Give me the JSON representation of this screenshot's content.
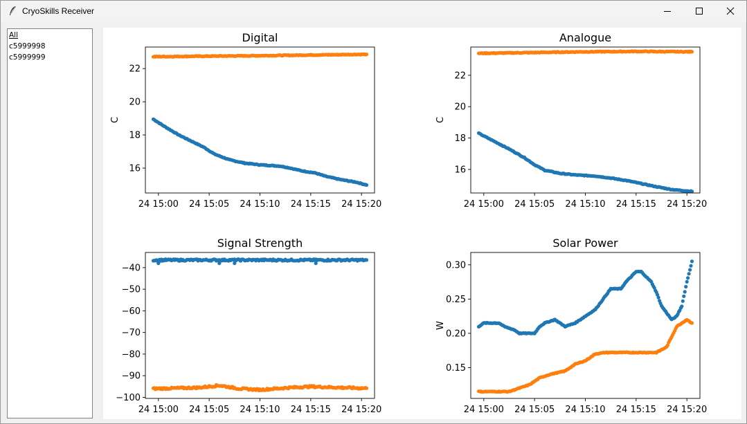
{
  "window": {
    "title": "CryoSkills Receiver"
  },
  "window_controls": {
    "minimize": "–",
    "maximize": "□",
    "close": "×"
  },
  "sidebar": {
    "items": [
      {
        "label": "All",
        "selected": true
      },
      {
        "label": "c5999998"
      },
      {
        "label": "c5999999"
      }
    ]
  },
  "colors": {
    "series1": "#1f77b4",
    "series2": "#ff7f0e"
  },
  "chart_data": [
    {
      "type": "scatter",
      "title": "Digital",
      "xlabel": "",
      "ylabel": "C",
      "xlim": [
        "2024-xx-24 14:58:43",
        "2024-xx-24 15:21:17"
      ],
      "ylim": [
        14.5,
        23.3
      ],
      "xticks": [
        "24 15:00",
        "24 15:05",
        "24 15:10",
        "24 15:15",
        "24 15:20"
      ],
      "yticks": [
        16,
        18,
        20,
        22
      ],
      "series": [
        {
          "color": "#1f77b4",
          "points": [
            [
              "14:59:30",
              18.95
            ],
            [
              "15:00:30",
              18.55
            ],
            [
              "15:02:00",
              18.0
            ],
            [
              "15:03:30",
              17.55
            ],
            [
              "15:04:30",
              17.25
            ],
            [
              "15:05:30",
              16.85
            ],
            [
              "15:07:00",
              16.5
            ],
            [
              "15:08:30",
              16.3
            ],
            [
              "15:10:00",
              16.2
            ],
            [
              "15:12:00",
              16.12
            ],
            [
              "15:13:00",
              16.0
            ],
            [
              "15:14:00",
              15.85
            ],
            [
              "15:15:30",
              15.7
            ],
            [
              "15:16:30",
              15.5
            ],
            [
              "15:18:00",
              15.3
            ],
            [
              "15:19:30",
              15.15
            ],
            [
              "15:20:30",
              14.98
            ]
          ]
        },
        {
          "color": "#ff7f0e",
          "points": [
            [
              "14:59:30",
              22.72
            ],
            [
              "15:05:00",
              22.75
            ],
            [
              "15:10:00",
              22.78
            ],
            [
              "15:15:00",
              22.82
            ],
            [
              "15:20:30",
              22.86
            ]
          ]
        }
      ]
    },
    {
      "type": "scatter",
      "title": "Analogue",
      "xlabel": "",
      "ylabel": "C",
      "xlim": [
        "2024-xx-24 14:58:43",
        "2024-xx-24 15:21:17"
      ],
      "ylim": [
        14.5,
        23.8
      ],
      "xticks": [
        "24 15:00",
        "24 15:05",
        "24 15:10",
        "24 15:15",
        "24 15:20"
      ],
      "yticks": [
        16,
        18,
        20,
        22
      ],
      "series": [
        {
          "color": "#1f77b4",
          "points": [
            [
              "14:59:30",
              18.3
            ],
            [
              "15:01:00",
              17.8
            ],
            [
              "15:02:30",
              17.3
            ],
            [
              "15:04:00",
              16.75
            ],
            [
              "15:05:00",
              16.3
            ],
            [
              "15:06:00",
              15.95
            ],
            [
              "15:07:30",
              15.75
            ],
            [
              "15:09:00",
              15.65
            ],
            [
              "15:11:00",
              15.58
            ],
            [
              "15:12:30",
              15.45
            ],
            [
              "15:14:00",
              15.3
            ],
            [
              "15:15:30",
              15.1
            ],
            [
              "15:17:00",
              14.9
            ],
            [
              "15:18:30",
              14.72
            ],
            [
              "15:20:30",
              14.6
            ]
          ]
        },
        {
          "color": "#ff7f0e",
          "points": [
            [
              "14:59:30",
              23.4
            ],
            [
              "15:05:00",
              23.45
            ],
            [
              "15:10:00",
              23.5
            ],
            [
              "15:15:00",
              23.52
            ],
            [
              "15:20:30",
              23.5
            ]
          ]
        }
      ]
    },
    {
      "type": "scatter",
      "title": "Signal Strength",
      "xlabel": "",
      "ylabel": "",
      "xlim": [
        "2024-xx-24 14:58:43",
        "2024-xx-24 15:21:17"
      ],
      "ylim": [
        -100.5,
        -33
      ],
      "xticks": [
        "24 15:00",
        "24 15:05",
        "24 15:10",
        "24 15:15",
        "24 15:20"
      ],
      "yticks": [
        -100,
        -90,
        -80,
        -70,
        -60,
        -50,
        -40
      ],
      "series": [
        {
          "color": "#1f77b4",
          "points": [
            [
              "14:59:30",
              -36.5
            ],
            [
              "15:20:30",
              -36.5
            ]
          ],
          "outliers": [
            [
              "15:00:00",
              -38
            ],
            [
              "15:06:00",
              -38
            ],
            [
              "15:07:30",
              -38
            ],
            [
              "15:15:30",
              -38
            ]
          ]
        },
        {
          "color": "#ff7f0e",
          "points": [
            [
              "14:59:30",
              -96
            ],
            [
              "15:04:00",
              -95.5
            ],
            [
              "15:06:00",
              -94.5
            ],
            [
              "15:08:00",
              -96
            ],
            [
              "15:10:00",
              -96.5
            ],
            [
              "15:13:00",
              -95.5
            ],
            [
              "15:15:00",
              -95
            ],
            [
              "15:18:00",
              -95.5
            ],
            [
              "15:20:30",
              -95.8
            ]
          ]
        }
      ]
    },
    {
      "type": "scatter",
      "title": "Solar Power",
      "xlabel": "",
      "ylabel": "W",
      "xlim": [
        "2024-xx-24 14:58:43",
        "2024-xx-24 15:21:17"
      ],
      "ylim": [
        0.105,
        0.318
      ],
      "xticks": [
        "24 15:00",
        "24 15:05",
        "24 15:10",
        "24 15:15",
        "24 15:20"
      ],
      "yticks": [
        0.15,
        0.2,
        0.25,
        0.3
      ],
      "series": [
        {
          "color": "#1f77b4",
          "points": [
            [
              "14:59:30",
              0.21
            ],
            [
              "15:00:00",
              0.215
            ],
            [
              "15:01:30",
              0.215
            ],
            [
              "15:02:00",
              0.21
            ],
            [
              "15:03:00",
              0.205
            ],
            [
              "15:03:30",
              0.2
            ],
            [
              "15:05:00",
              0.2
            ],
            [
              "15:05:30",
              0.21
            ],
            [
              "15:06:00",
              0.215
            ],
            [
              "15:07:00",
              0.22
            ],
            [
              "15:07:30",
              0.215
            ],
            [
              "15:08:00",
              0.21
            ],
            [
              "15:09:00",
              0.215
            ],
            [
              "15:10:00",
              0.225
            ],
            [
              "15:11:00",
              0.235
            ],
            [
              "15:12:00",
              0.255
            ],
            [
              "15:12:30",
              0.265
            ],
            [
              "15:13:30",
              0.265
            ],
            [
              "15:14:00",
              0.275
            ],
            [
              "15:15:00",
              0.29
            ],
            [
              "15:15:30",
              0.29
            ],
            [
              "15:16:30",
              0.275
            ],
            [
              "15:17:00",
              0.26
            ],
            [
              "15:17:30",
              0.24
            ],
            [
              "15:18:00",
              0.23
            ],
            [
              "15:18:30",
              0.22
            ],
            [
              "15:19:00",
              0.225
            ],
            [
              "15:19:30",
              0.24
            ],
            [
              "15:20:00",
              0.275
            ],
            [
              "15:20:30",
              0.305
            ]
          ]
        },
        {
          "color": "#ff7f0e",
          "points": [
            [
              "14:59:30",
              0.115
            ],
            [
              "15:02:30",
              0.115
            ],
            [
              "15:03:30",
              0.12
            ],
            [
              "15:04:30",
              0.125
            ],
            [
              "15:05:30",
              0.135
            ],
            [
              "15:06:30",
              0.14
            ],
            [
              "15:08:00",
              0.145
            ],
            [
              "15:09:00",
              0.155
            ],
            [
              "15:10:00",
              0.16
            ],
            [
              "15:11:00",
              0.17
            ],
            [
              "15:12:00",
              0.172
            ],
            [
              "15:14:00",
              0.172
            ],
            [
              "15:17:00",
              0.172
            ],
            [
              "15:18:00",
              0.18
            ],
            [
              "15:18:30",
              0.195
            ],
            [
              "15:19:00",
              0.21
            ],
            [
              "15:20:00",
              0.22
            ],
            [
              "15:20:30",
              0.215
            ]
          ]
        }
      ]
    }
  ]
}
